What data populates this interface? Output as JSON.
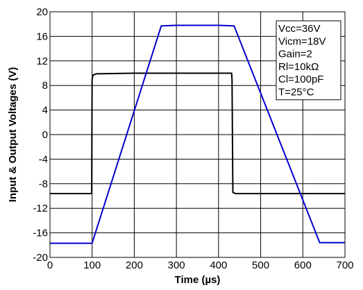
{
  "chart_data": {
    "type": "line",
    "title": "",
    "xlabel": "Time (µs)",
    "ylabel": "Input & Output Voltages (V)",
    "xlim": [
      0,
      700
    ],
    "ylim": [
      -20,
      20
    ],
    "x_ticks": [
      0,
      100,
      200,
      300,
      400,
      500,
      600,
      700
    ],
    "x_tick_labels": [
      "0",
      "100",
      "200",
      "300",
      "400",
      "500",
      "600",
      "700"
    ],
    "y_ticks": [
      -20,
      -16,
      -12,
      -8,
      -4,
      0,
      4,
      8,
      12,
      16,
      20
    ],
    "y_tick_labels": [
      "-20",
      "-16",
      "-12",
      "-8",
      "-4",
      "0",
      "4",
      "8",
      "12",
      "16",
      "20"
    ],
    "grid": true,
    "series": [
      {
        "color": "#000000",
        "x": [
          0,
          99,
          100,
          102,
          110,
          200,
          300,
          400,
          431,
          432,
          434,
          440,
          500,
          600,
          700
        ],
        "y": [
          -9.6,
          -9.6,
          9.0,
          9.7,
          9.9,
          10.0,
          10.0,
          10.0,
          10.0,
          9.0,
          -9.4,
          -9.6,
          -9.6,
          -9.6,
          -9.6
        ]
      },
      {
        "color": "#0000cc",
        "x": [
          0,
          100,
          264,
          300,
          400,
          437,
          640,
          700
        ],
        "y": [
          -17.7,
          -17.7,
          17.7,
          17.8,
          17.8,
          17.7,
          -17.6,
          -17.6
        ]
      }
    ],
    "annotation": {
      "placement": "top-right",
      "lines": [
        "Vcc=36V",
        "Vicm=18V",
        "Gain=2",
        "Rl=10kΩ",
        "Cl=100pF",
        "T=25°C"
      ]
    }
  }
}
